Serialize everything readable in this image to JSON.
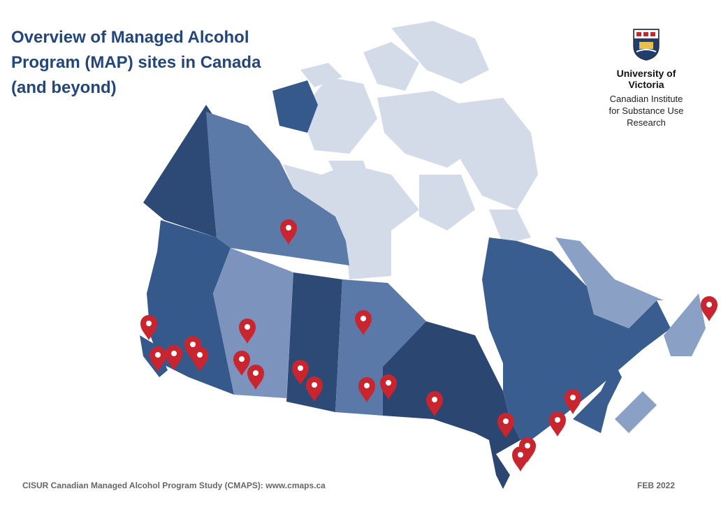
{
  "header": {
    "title": "Overview of Managed Alcohol Program (MAP) sites in Canada (and beyond)"
  },
  "logo": {
    "university": "University of Victoria",
    "institute": "Canadian Institute for Substance Use Research"
  },
  "footer": {
    "source": "CISUR Canadian Managed Alcohol Program Study (CMAPS): www.cmaps.ca",
    "date": "FEB 2022"
  }
}
